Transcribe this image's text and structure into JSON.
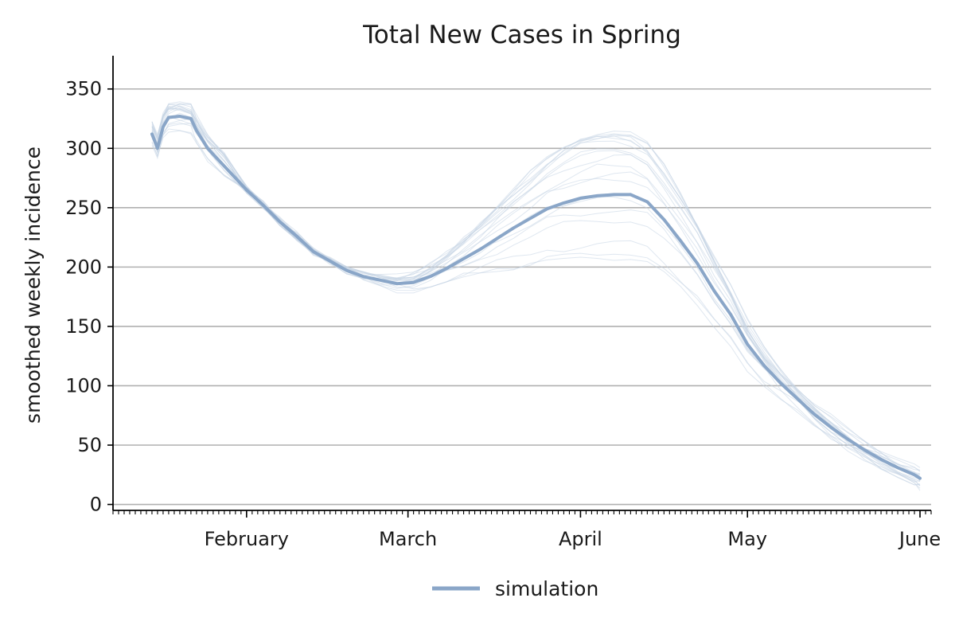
{
  "chart_data": {
    "type": "line",
    "title": "Total New Cases in Spring",
    "xlabel": "",
    "ylabel": "smoothed weekly incidence",
    "x_axis": {
      "type": "date",
      "range": [
        "2020-01-08",
        "2020-06-03"
      ],
      "month_ticks": [
        {
          "date": "2020-02-01",
          "label": "February"
        },
        {
          "date": "2020-03-01",
          "label": "March"
        },
        {
          "date": "2020-04-01",
          "label": "April"
        },
        {
          "date": "2020-05-01",
          "label": "May"
        },
        {
          "date": "2020-06-01",
          "label": "June"
        }
      ],
      "minor_ticks": "daily"
    },
    "y_axis": {
      "ylim": [
        -5,
        378
      ],
      "ticks": [
        0,
        50,
        100,
        150,
        200,
        250,
        300,
        350
      ]
    },
    "grid": {
      "y": true,
      "x": false
    },
    "legend": {
      "placement": "bottom-center",
      "entries": [
        "simulation"
      ]
    },
    "series": [
      {
        "name": "simulation",
        "color": "#8aa6c8",
        "points": [
          [
            "2020-01-15",
            312
          ],
          [
            "2020-01-16",
            300
          ],
          [
            "2020-01-17",
            318
          ],
          [
            "2020-01-18",
            326
          ],
          [
            "2020-01-20",
            327
          ],
          [
            "2020-01-22",
            325
          ],
          [
            "2020-01-23",
            315
          ],
          [
            "2020-01-25",
            300
          ],
          [
            "2020-01-28",
            285
          ],
          [
            "2020-02-01",
            265
          ],
          [
            "2020-02-04",
            252
          ],
          [
            "2020-02-07",
            238
          ],
          [
            "2020-02-10",
            226
          ],
          [
            "2020-02-13",
            213
          ],
          [
            "2020-02-16",
            205
          ],
          [
            "2020-02-19",
            197
          ],
          [
            "2020-02-22",
            192
          ],
          [
            "2020-02-25",
            189
          ],
          [
            "2020-02-28",
            186
          ],
          [
            "2020-03-02",
            187
          ],
          [
            "2020-03-05",
            192
          ],
          [
            "2020-03-08",
            199
          ],
          [
            "2020-03-11",
            207
          ],
          [
            "2020-03-14",
            215
          ],
          [
            "2020-03-17",
            224
          ],
          [
            "2020-03-20",
            233
          ],
          [
            "2020-03-23",
            241
          ],
          [
            "2020-03-26",
            249
          ],
          [
            "2020-03-29",
            254
          ],
          [
            "2020-04-01",
            258
          ],
          [
            "2020-04-04",
            260
          ],
          [
            "2020-04-07",
            261
          ],
          [
            "2020-04-10",
            261
          ],
          [
            "2020-04-13",
            255
          ],
          [
            "2020-04-16",
            240
          ],
          [
            "2020-04-19",
            222
          ],
          [
            "2020-04-22",
            203
          ],
          [
            "2020-04-25",
            180
          ],
          [
            "2020-04-28",
            160
          ],
          [
            "2020-05-01",
            135
          ],
          [
            "2020-05-04",
            117
          ],
          [
            "2020-05-07",
            102
          ],
          [
            "2020-05-10",
            89
          ],
          [
            "2020-05-13",
            76
          ],
          [
            "2020-05-16",
            65
          ],
          [
            "2020-05-19",
            55
          ],
          [
            "2020-05-22",
            46
          ],
          [
            "2020-05-25",
            38
          ],
          [
            "2020-05-28",
            31
          ],
          [
            "2020-05-31",
            25
          ],
          [
            "2020-06-01",
            22
          ]
        ]
      }
    ],
    "ensemble_members": {
      "count": 20,
      "color": "#c5d3e4",
      "note": "faint individual simulation trajectories around the mean"
    }
  }
}
